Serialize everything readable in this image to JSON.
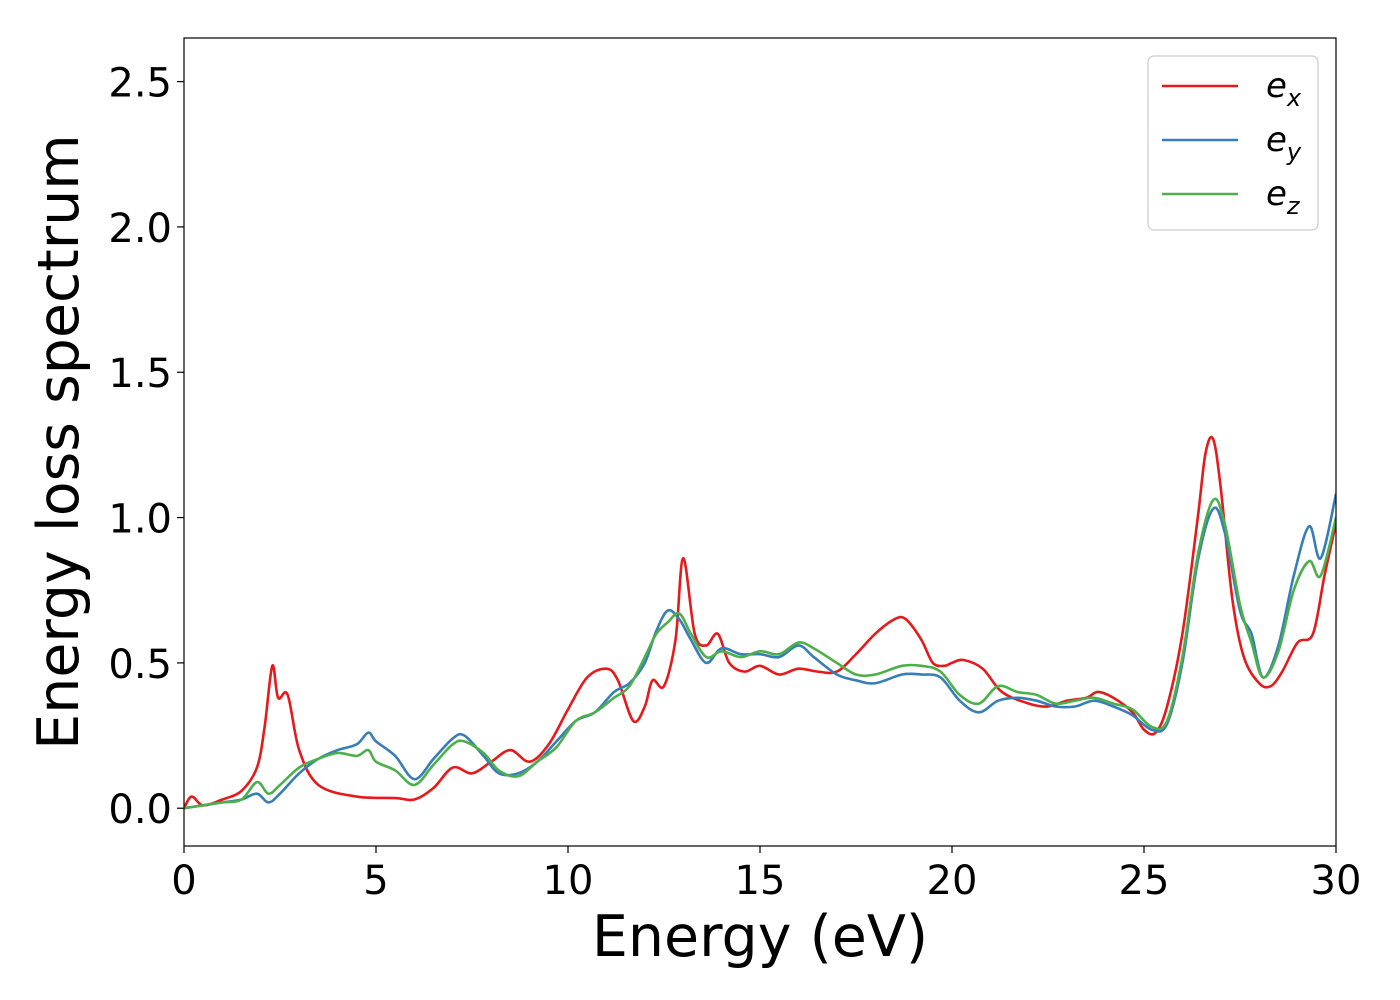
{
  "chart_data": {
    "type": "line",
    "title": "",
    "xlabel": "Energy (eV)",
    "ylabel": "Energy loss spectrum",
    "xlim": [
      0,
      30
    ],
    "ylim": [
      -0.13,
      2.65
    ],
    "xticks": [
      0,
      5,
      10,
      15,
      20,
      25,
      30
    ],
    "xtick_labels": [
      "0",
      "5",
      "10",
      "15",
      "20",
      "25",
      "30"
    ],
    "yticks": [
      0.0,
      0.5,
      1.0,
      1.5,
      2.0,
      2.5
    ],
    "ytick_labels": [
      "0.0",
      "0.5",
      "1.0",
      "1.5",
      "2.0",
      "2.5"
    ],
    "grid": false,
    "legend_position": "top-right",
    "series": [
      {
        "name": "e_x",
        "label_base": "e",
        "label_sub": "x",
        "color": "#e41a1c",
        "x": [
          0,
          0.2,
          0.5,
          1.0,
          1.5,
          1.9,
          2.1,
          2.3,
          2.45,
          2.7,
          3.0,
          3.5,
          4.5,
          5.5,
          6.0,
          6.5,
          7.0,
          7.5,
          8.0,
          8.5,
          9.0,
          9.5,
          10.0,
          10.5,
          11.0,
          11.3,
          11.7,
          12.0,
          12.2,
          12.5,
          12.8,
          13.0,
          13.3,
          13.6,
          13.9,
          14.2,
          14.6,
          15.0,
          15.5,
          16.0,
          16.5,
          17.0,
          17.5,
          18.0,
          18.5,
          18.8,
          19.2,
          19.5,
          19.8,
          20.0,
          20.3,
          20.8,
          21.3,
          22.0,
          22.5,
          23.0,
          23.5,
          23.8,
          24.2,
          24.7,
          25.0,
          25.3,
          25.6,
          26.0,
          26.4,
          26.6,
          26.8,
          27.0,
          27.3,
          27.6,
          28.0,
          28.3,
          28.6,
          29.0,
          29.4,
          29.7,
          30.0
        ],
        "y": [
          0.0,
          0.04,
          0.01,
          0.03,
          0.06,
          0.14,
          0.28,
          0.49,
          0.38,
          0.39,
          0.2,
          0.08,
          0.04,
          0.035,
          0.03,
          0.07,
          0.14,
          0.12,
          0.16,
          0.2,
          0.16,
          0.22,
          0.34,
          0.45,
          0.48,
          0.44,
          0.3,
          0.35,
          0.44,
          0.42,
          0.58,
          0.86,
          0.6,
          0.56,
          0.6,
          0.5,
          0.47,
          0.49,
          0.46,
          0.48,
          0.47,
          0.47,
          0.53,
          0.6,
          0.65,
          0.65,
          0.58,
          0.5,
          0.49,
          0.5,
          0.51,
          0.48,
          0.4,
          0.36,
          0.35,
          0.37,
          0.38,
          0.4,
          0.38,
          0.33,
          0.27,
          0.26,
          0.35,
          0.6,
          1.0,
          1.22,
          1.27,
          1.1,
          0.72,
          0.52,
          0.43,
          0.42,
          0.47,
          0.57,
          0.6,
          0.8,
          0.98
        ]
      },
      {
        "name": "e_y",
        "label_base": "e",
        "label_sub": "y",
        "color": "#377eb8",
        "x": [
          0,
          0.5,
          1.0,
          1.5,
          1.9,
          2.2,
          2.5,
          3.0,
          3.5,
          4.0,
          4.5,
          4.8,
          5.0,
          5.5,
          6.0,
          6.5,
          7.0,
          7.3,
          7.8,
          8.2,
          8.7,
          9.2,
          9.7,
          10.2,
          10.7,
          11.2,
          11.6,
          12.0,
          12.3,
          12.6,
          12.9,
          13.2,
          13.6,
          14.0,
          14.5,
          15.0,
          15.5,
          16.0,
          16.4,
          17.0,
          17.5,
          18.0,
          18.7,
          19.2,
          19.7,
          20.2,
          20.7,
          21.2,
          21.7,
          22.2,
          22.7,
          23.2,
          23.7,
          24.2,
          24.7,
          25.2,
          25.6,
          26.0,
          26.4,
          26.8,
          27.1,
          27.5,
          27.8,
          28.1,
          28.5,
          28.9,
          29.3,
          29.6,
          30.0
        ],
        "y": [
          0.0,
          0.01,
          0.02,
          0.03,
          0.05,
          0.02,
          0.05,
          0.12,
          0.17,
          0.2,
          0.22,
          0.26,
          0.23,
          0.18,
          0.1,
          0.17,
          0.24,
          0.25,
          0.18,
          0.12,
          0.12,
          0.16,
          0.23,
          0.3,
          0.33,
          0.4,
          0.43,
          0.5,
          0.61,
          0.68,
          0.65,
          0.58,
          0.5,
          0.55,
          0.53,
          0.53,
          0.52,
          0.56,
          0.52,
          0.46,
          0.44,
          0.43,
          0.46,
          0.46,
          0.45,
          0.37,
          0.33,
          0.37,
          0.38,
          0.37,
          0.35,
          0.35,
          0.37,
          0.35,
          0.32,
          0.27,
          0.29,
          0.5,
          0.85,
          1.03,
          0.95,
          0.68,
          0.6,
          0.45,
          0.56,
          0.8,
          0.97,
          0.86,
          1.08
        ]
      },
      {
        "name": "e_z",
        "label_base": "e",
        "label_sub": "z",
        "color": "#4daf4a",
        "x": [
          0,
          0.5,
          1.0,
          1.5,
          1.9,
          2.2,
          2.5,
          3.0,
          3.5,
          4.0,
          4.5,
          4.8,
          5.0,
          5.5,
          6.0,
          6.5,
          7.0,
          7.3,
          7.8,
          8.2,
          8.7,
          9.2,
          9.7,
          10.2,
          10.7,
          11.2,
          11.6,
          12.0,
          12.3,
          12.6,
          12.9,
          13.2,
          13.6,
          14.0,
          14.5,
          15.0,
          15.5,
          16.0,
          16.4,
          17.0,
          17.5,
          18.0,
          18.7,
          19.2,
          19.7,
          20.2,
          20.7,
          21.2,
          21.7,
          22.2,
          22.7,
          23.2,
          23.7,
          24.2,
          24.7,
          25.2,
          25.6,
          26.0,
          26.4,
          26.8,
          27.1,
          27.5,
          27.8,
          28.1,
          28.5,
          28.9,
          29.3,
          29.6,
          30.0
        ],
        "y": [
          0.0,
          0.01,
          0.02,
          0.03,
          0.09,
          0.05,
          0.08,
          0.14,
          0.17,
          0.19,
          0.18,
          0.2,
          0.16,
          0.13,
          0.08,
          0.15,
          0.22,
          0.23,
          0.19,
          0.13,
          0.11,
          0.16,
          0.21,
          0.3,
          0.33,
          0.38,
          0.42,
          0.52,
          0.6,
          0.64,
          0.67,
          0.6,
          0.52,
          0.54,
          0.52,
          0.54,
          0.53,
          0.57,
          0.55,
          0.5,
          0.46,
          0.46,
          0.49,
          0.49,
          0.47,
          0.39,
          0.36,
          0.42,
          0.4,
          0.39,
          0.36,
          0.37,
          0.38,
          0.36,
          0.34,
          0.28,
          0.3,
          0.52,
          0.87,
          1.06,
          0.98,
          0.7,
          0.57,
          0.45,
          0.54,
          0.75,
          0.85,
          0.8,
          1.0
        ]
      }
    ]
  }
}
